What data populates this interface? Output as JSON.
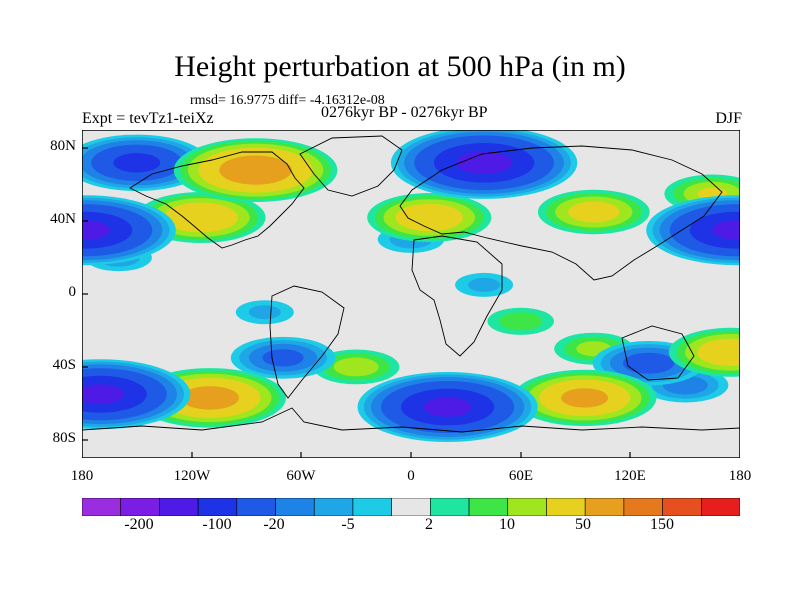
{
  "header": {
    "title": "Height perturbation at 500 hPa (in m)",
    "stats": "rmsd= 16.9775 diff= -4.16312e-08",
    "experiment": "Expt = tevTz1-teiXz",
    "period": "0276kyr BP - 0276kyr BP",
    "season": "DJF"
  },
  "axes": {
    "y_ticks": [
      "80N",
      "40N",
      "0",
      "40S",
      "80S"
    ],
    "x_ticks": [
      "180",
      "120W",
      "60W",
      "0",
      "60E",
      "120E",
      "180"
    ]
  },
  "colorbar": {
    "colors": [
      "#9b2de0",
      "#7a1ee6",
      "#4d1ae6",
      "#1e32e6",
      "#1e5ae6",
      "#1e82e6",
      "#1ea6e6",
      "#1ecbe6",
      "#e6e6e6",
      "#1ee6a0",
      "#3de646",
      "#a0e61e",
      "#e6d21e",
      "#e6a01e",
      "#e6781e",
      "#e6501e",
      "#e61e1e"
    ],
    "labels": [
      "-200",
      "-100",
      "-20",
      "-5",
      "2",
      "10",
      "50",
      "150"
    ]
  },
  "chart_data": {
    "type": "heatmap",
    "title": "Height perturbation at 500 hPa (in m)",
    "variable": "500 hPa geopotential height perturbation",
    "units": "m",
    "xlabel": "",
    "ylabel": "",
    "xlim": [
      -180,
      180
    ],
    "ylim": [
      -90,
      90
    ],
    "x_tick_labels": [
      "180",
      "120W",
      "60W",
      "0",
      "60E",
      "120E",
      "180"
    ],
    "y_tick_labels": [
      "80N",
      "40N",
      "0",
      "40S",
      "80S"
    ],
    "levels": [
      -200,
      -150,
      -100,
      -50,
      -20,
      -10,
      -5,
      -2,
      2,
      5,
      10,
      20,
      50,
      100,
      150,
      200
    ],
    "level_labels": [
      "-200",
      "-100",
      "-20",
      "-5",
      "2",
      "10",
      "50",
      "150"
    ],
    "features": [
      {
        "lon": -85,
        "lat": 68,
        "value": 85
      },
      {
        "lon": 40,
        "lat": 72,
        "value": -120
      },
      {
        "lon": -150,
        "lat": 72,
        "value": -60
      },
      {
        "lon": -115,
        "lat": 42,
        "value": 45
      },
      {
        "lon": -178,
        "lat": 35,
        "value": -110
      },
      {
        "lon": 178,
        "lat": 35,
        "value": -110
      },
      {
        "lon": 10,
        "lat": 42,
        "value": 40
      },
      {
        "lon": 100,
        "lat": 45,
        "value": 30
      },
      {
        "lon": 165,
        "lat": 55,
        "value": 20
      },
      {
        "lon": 0,
        "lat": 30,
        "value": -8
      },
      {
        "lon": -160,
        "lat": 20,
        "value": -8
      },
      {
        "lon": 40,
        "lat": 5,
        "value": -6
      },
      {
        "lon": -170,
        "lat": -55,
        "value": -110
      },
      {
        "lon": -80,
        "lat": -10,
        "value": -6
      },
      {
        "lon": -110,
        "lat": -57,
        "value": 70
      },
      {
        "lon": -70,
        "lat": -35,
        "value": -25
      },
      {
        "lon": 20,
        "lat": -62,
        "value": -110
      },
      {
        "lon": 95,
        "lat": -57,
        "value": 60
      },
      {
        "lon": 175,
        "lat": -32,
        "value": 40
      },
      {
        "lon": 130,
        "lat": -38,
        "value": -30
      },
      {
        "lon": -30,
        "lat": -40,
        "value": 15
      },
      {
        "lon": 60,
        "lat": -15,
        "value": 8
      },
      {
        "lon": 100,
        "lat": -30,
        "value": 12
      },
      {
        "lon": 150,
        "lat": -50,
        "value": -15
      }
    ]
  }
}
